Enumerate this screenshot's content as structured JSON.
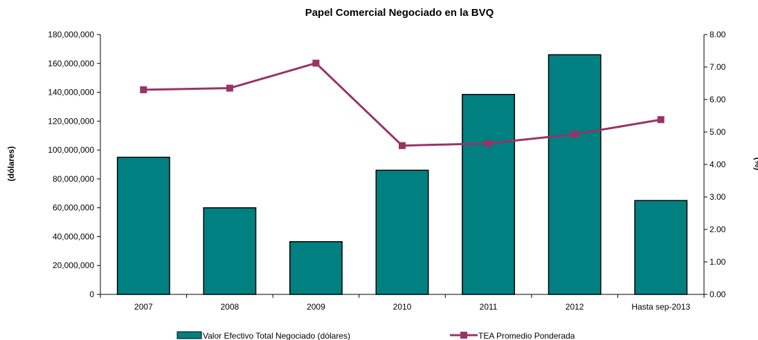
{
  "chart_data": {
    "type": "bar",
    "title": "Papel Comercial Negociado en la BVQ",
    "categories": [
      "2007",
      "2008",
      "2009",
      "2010",
      "2011",
      "2012",
      "Hasta sep-2013"
    ],
    "ylabel": "(dólares)",
    "y2label": "(%)",
    "ylim": [
      0,
      180000000
    ],
    "y2lim": [
      0,
      8
    ],
    "yticks": [
      "0",
      "20,000,000",
      "40,000,000",
      "60,000,000",
      "80,000,000",
      "100,000,000",
      "120,000,000",
      "140,000,000",
      "160,000,000",
      "180,000,000"
    ],
    "y2ticks": [
      "0.00",
      "1.00",
      "2.00",
      "3.00",
      "4.00",
      "5.00",
      "6.00",
      "7.00",
      "8.00"
    ],
    "series": [
      {
        "name": "Valor Efectivo Total Negociado (dólares)",
        "type": "bar",
        "axis": "left",
        "color": "#008080",
        "values": [
          95000000,
          60000000,
          36500000,
          86000000,
          138500000,
          166000000,
          65000000
        ]
      },
      {
        "name": "TEA Promedio Ponderada",
        "type": "line",
        "axis": "right",
        "color": "#993366",
        "values": [
          6.3,
          6.35,
          7.12,
          4.58,
          4.65,
          4.93,
          5.38
        ]
      }
    ],
    "grid": false,
    "legend": "bottom"
  }
}
